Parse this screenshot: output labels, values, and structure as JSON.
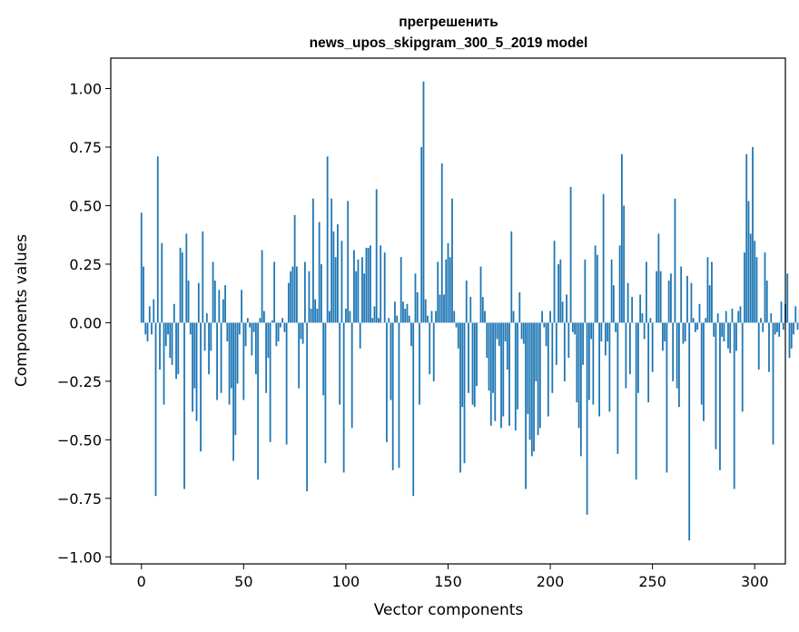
{
  "chart_data": {
    "type": "bar",
    "title": "прегрешенить",
    "subtitle": "news_upos_skipgram_300_5_2019 model",
    "xlabel": "Vector components",
    "ylabel": "Components values",
    "xlim": [
      -15,
      315
    ],
    "ylim": [
      -1.03,
      1.13
    ],
    "xticks": [
      0,
      50,
      100,
      150,
      200,
      250,
      300
    ],
    "yticks": [
      -1.0,
      -0.75,
      -0.5,
      -0.25,
      0.0,
      0.25,
      0.5,
      0.75,
      1.0
    ],
    "ytick_labels": [
      "−1.00",
      "−0.75",
      "−0.50",
      "−0.25",
      "0.00",
      "0.25",
      "0.50",
      "0.75",
      "1.00"
    ],
    "xtick_labels": [
      "0",
      "50",
      "100",
      "150",
      "200",
      "250",
      "300"
    ],
    "bar_color": "#1f77b4",
    "grid": false,
    "values": [
      0.47,
      0.24,
      -0.05,
      -0.08,
      0.07,
      -0.05,
      0.1,
      -0.74,
      0.71,
      -0.2,
      0.34,
      -0.35,
      -0.1,
      -0.05,
      -0.15,
      -0.18,
      0.08,
      -0.24,
      -0.22,
      0.32,
      0.3,
      -0.71,
      0.38,
      0.18,
      -0.05,
      -0.38,
      -0.28,
      -0.42,
      0.17,
      -0.55,
      0.39,
      -0.12,
      0.04,
      -0.22,
      -0.12,
      0.26,
      0.18,
      -0.33,
      0.14,
      -0.3,
      0.1,
      0.16,
      -0.08,
      -0.35,
      -0.28,
      -0.59,
      -0.48,
      -0.26,
      -0.05,
      0.14,
      -0.33,
      -0.1,
      0.02,
      -0.02,
      -0.14,
      -0.04,
      -0.22,
      -0.67,
      0.02,
      0.31,
      0.05,
      -0.3,
      -0.15,
      -0.51,
      0.01,
      0.26,
      -0.1,
      -0.08,
      -0.02,
      0.02,
      -0.04,
      -0.52,
      0.17,
      0.22,
      0.24,
      0.46,
      0.24,
      -0.28,
      -0.07,
      -0.09,
      0.26,
      -0.72,
      0.22,
      0.06,
      0.53,
      0.1,
      0.06,
      0.43,
      0.25,
      -0.31,
      -0.6,
      0.71,
      0.05,
      0.53,
      0.39,
      0.28,
      0.42,
      -0.35,
      0.35,
      -0.64,
      0.06,
      0.52,
      0.05,
      -0.45,
      0.31,
      0.22,
      0.27,
      -0.11,
      0.28,
      0.21,
      0.32,
      0.32,
      0.33,
      0.02,
      0.07,
      0.57,
      0.02,
      0.33,
      0.0,
      0.3,
      -0.51,
      0.02,
      -0.33,
      -0.63,
      0.09,
      0.03,
      -0.62,
      0.28,
      0.09,
      0.06,
      0.08,
      0.03,
      -0.1,
      -0.74,
      0.21,
      0.13,
      -0.35,
      0.75,
      1.03,
      0.1,
      0.03,
      -0.22,
      0.05,
      -0.25,
      0.05,
      0.26,
      0.12,
      0.68,
      0.12,
      0.27,
      0.34,
      0.28,
      0.53,
      0.05,
      -0.02,
      -0.11,
      -0.64,
      -0.36,
      -0.6,
      0.18,
      -0.3,
      0.11,
      -0.35,
      -0.36,
      -0.27,
      0.0,
      0.24,
      0.11,
      0.05,
      -0.15,
      -0.29,
      -0.44,
      -0.3,
      -0.42,
      -0.07,
      -0.1,
      -0.45,
      -0.4,
      -0.08,
      -0.2,
      -0.44,
      0.39,
      0.05,
      -0.46,
      -0.37,
      0.13,
      -0.07,
      -0.09,
      -0.71,
      -0.39,
      -0.5,
      -0.57,
      -0.55,
      -0.25,
      -0.48,
      -0.45,
      0.05,
      -0.02,
      -0.1,
      -0.4,
      0.05,
      -0.3,
      0.35,
      -0.18,
      0.25,
      0.27,
      0.09,
      -0.25,
      0.12,
      -0.15,
      0.58,
      -0.04,
      -0.05,
      -0.34,
      -0.45,
      -0.57,
      -0.18,
      0.27,
      -0.82,
      -0.33,
      -0.07,
      -0.35,
      0.33,
      0.29,
      -0.4,
      -0.08,
      0.55,
      -0.14,
      -0.08,
      -0.38,
      0.27,
      0.16,
      -0.04,
      -0.56,
      0.33,
      0.72,
      0.5,
      -0.28,
      0.17,
      -0.22,
      0.11,
      0.0,
      -0.67,
      -0.3,
      0.12,
      0.04,
      -0.07,
      0.26,
      -0.34,
      0.02,
      -0.21,
      0.0,
      0.22,
      0.38,
      0.22,
      -0.12,
      -0.08,
      -0.64,
      0.18,
      0.21,
      -0.25,
      0.53,
      -0.28,
      -0.36,
      0.24,
      -0.09,
      -0.08,
      0.2,
      -0.93,
      0.17,
      0.02,
      -0.04,
      -0.03,
      0.08,
      -0.35,
      -0.42,
      0.02,
      0.28,
      0.16,
      0.26,
      -0.06,
      -0.54,
      0.04,
      -0.63,
      -0.06,
      -0.08,
      0.05,
      -0.11,
      -0.13,
      0.06,
      -0.71,
      -0.12,
      0.05,
      0.07,
      -0.38,
      0.3,
      0.72,
      0.52,
      0.38,
      0.75,
      0.35,
      0.28,
      -0.2,
      0.02,
      -0.04,
      0.3,
      0.18,
      -0.21,
      0.04,
      -0.52,
      -0.05,
      -0.04,
      -0.06,
      0.09,
      -0.03,
      0.08,
      0.21,
      -0.15,
      -0.11,
      -0.05,
      0.07,
      -0.03,
      0.06,
      -0.05,
      0.02,
      -0.03
    ]
  }
}
